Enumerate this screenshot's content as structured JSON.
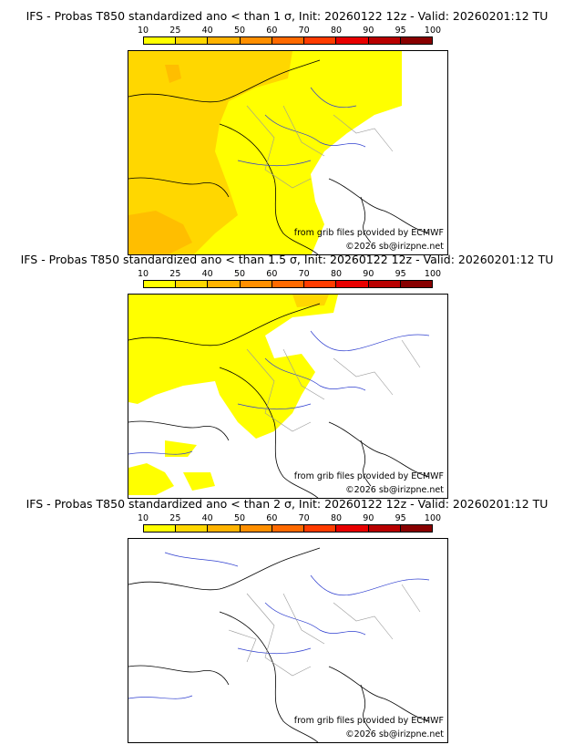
{
  "colorbar": {
    "ticks": [
      "10",
      "25",
      "40",
      "50",
      "60",
      "70",
      "80",
      "90",
      "95",
      "100"
    ],
    "colors": [
      "#ffff00",
      "#ffd700",
      "#ffb300",
      "#ff8f00",
      "#ff6a00",
      "#ff3c00",
      "#e80000",
      "#b80000",
      "#880000"
    ]
  },
  "panels": [
    {
      "title": "IFS - Probas T850  standardized ano < than 1 σ, Init: 20260122 12z - Valid: 20260201:12 TU",
      "level": "high"
    },
    {
      "title": "IFS - Probas T850  standardized ano < than 1.5 σ, Init: 20260122 12z - Valid: 20260201:12 TU",
      "level": "mid"
    },
    {
      "title": "IFS - Probas T850  standardized ano < than 2 σ, Init: 20260122 12z - Valid: 20260201:12 TU",
      "level": "none"
    }
  ],
  "credits": {
    "grib": "from grib files provided by ECMWF",
    "copyright": "©2026 sb@irizpne.net"
  }
}
